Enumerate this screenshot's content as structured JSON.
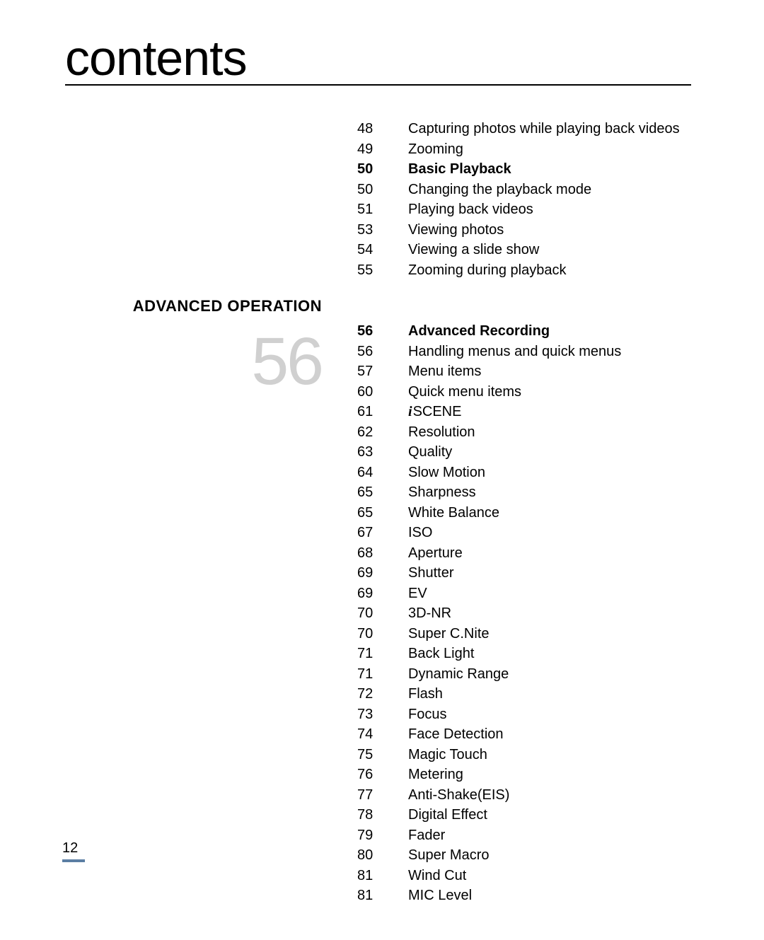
{
  "title": "contents",
  "page_number": "12",
  "accent_bar_color": "#5b7ea3",
  "section": {
    "label": "ADVANCED OPERATION",
    "big_number": "56"
  },
  "toc_block1": [
    {
      "page": "48",
      "text": "Capturing photos while playing back videos",
      "bold": false
    },
    {
      "page": "49",
      "text": "Zooming",
      "bold": false
    },
    {
      "page": "50",
      "text": "Basic Playback",
      "bold": true
    },
    {
      "page": "50",
      "text": "Changing the playback mode",
      "bold": false
    },
    {
      "page": "51",
      "text": "Playing back videos",
      "bold": false
    },
    {
      "page": "53",
      "text": "Viewing photos",
      "bold": false
    },
    {
      "page": "54",
      "text": "Viewing a slide show",
      "bold": false
    },
    {
      "page": "55",
      "text": "Zooming during playback",
      "bold": false
    }
  ],
  "toc_block2": [
    {
      "page": "56",
      "text": "Advanced Recording",
      "bold": true
    },
    {
      "page": "56",
      "text": "Handling menus and quick menus",
      "bold": false
    },
    {
      "page": "57",
      "text": "Menu items",
      "bold": false
    },
    {
      "page": "60",
      "text": "Quick menu items",
      "bold": false
    },
    {
      "page": "61",
      "text": "SCENE",
      "bold": false,
      "iscene": true
    },
    {
      "page": "62",
      "text": "Resolution",
      "bold": false
    },
    {
      "page": "63",
      "text": "Quality",
      "bold": false
    },
    {
      "page": "64",
      "text": "Slow Motion",
      "bold": false
    },
    {
      "page": "65",
      "text": "Sharpness",
      "bold": false
    },
    {
      "page": "65",
      "text": "White Balance",
      "bold": false
    },
    {
      "page": "67",
      "text": "ISO",
      "bold": false
    },
    {
      "page": "68",
      "text": "Aperture",
      "bold": false
    },
    {
      "page": "69",
      "text": "Shutter",
      "bold": false
    },
    {
      "page": "69",
      "text": "EV",
      "bold": false
    },
    {
      "page": "70",
      "text": "3D-NR",
      "bold": false
    },
    {
      "page": "70",
      "text": "Super C.Nite",
      "bold": false
    },
    {
      "page": "71",
      "text": "Back Light",
      "bold": false
    },
    {
      "page": "71",
      "text": "Dynamic Range",
      "bold": false
    },
    {
      "page": "72",
      "text": "Flash",
      "bold": false
    },
    {
      "page": "73",
      "text": "Focus",
      "bold": false
    },
    {
      "page": "74",
      "text": "Face Detection",
      "bold": false
    },
    {
      "page": "75",
      "text": "Magic Touch",
      "bold": false
    },
    {
      "page": "76",
      "text": "Metering",
      "bold": false
    },
    {
      "page": "77",
      "text": "Anti-Shake(EIS)",
      "bold": false
    },
    {
      "page": "78",
      "text": "Digital Effect",
      "bold": false
    },
    {
      "page": "79",
      "text": "Fader",
      "bold": false
    },
    {
      "page": "80",
      "text": "Super Macro",
      "bold": false
    },
    {
      "page": "81",
      "text": "Wind Cut",
      "bold": false
    },
    {
      "page": "81",
      "text": "MIC Level",
      "bold": false
    }
  ]
}
